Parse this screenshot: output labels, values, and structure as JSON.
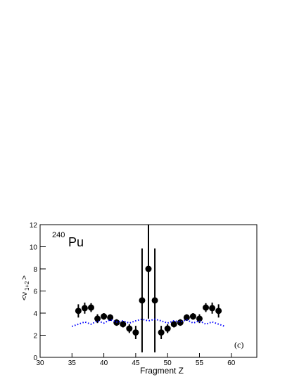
{
  "chart_data": {
    "type": "scatter",
    "x_label": "Fragment Z",
    "y_label_parts": [
      "<ν",
      "1+2",
      ">"
    ],
    "annotations": {
      "mass_number": "240",
      "element": "Pu",
      "panel": "(c)"
    },
    "xlim": [
      30,
      64
    ],
    "ylim": [
      0,
      12
    ],
    "xticks": [
      30,
      35,
      40,
      45,
      50,
      55,
      60
    ],
    "yticks": [
      0,
      2,
      4,
      6,
      8,
      10,
      12
    ],
    "series": [
      {
        "kind": "errorbar",
        "color": "#000000",
        "x": [
          36,
          37,
          38,
          39,
          40,
          41,
          42,
          43,
          44,
          45,
          46,
          47,
          48,
          49,
          50,
          51,
          52,
          53,
          54,
          55,
          56,
          57,
          58
        ],
        "values": [
          4.2,
          4.45,
          4.5,
          3.5,
          3.7,
          3.6,
          3.15,
          3.0,
          2.6,
          2.25,
          5.15,
          8.0,
          5.15,
          2.25,
          2.6,
          3.0,
          3.15,
          3.6,
          3.7,
          3.5,
          4.5,
          4.45,
          4.2
        ],
        "errors": [
          0.6,
          0.5,
          0.4,
          0.4,
          0.3,
          0.3,
          0.3,
          0.3,
          0.4,
          0.6,
          4.7,
          4.5,
          4.7,
          0.6,
          0.4,
          0.3,
          0.3,
          0.3,
          0.3,
          0.4,
          0.4,
          0.5,
          0.6
        ]
      },
      {
        "kind": "line",
        "color": "#0000ff",
        "style": "dotted",
        "x": [
          35,
          36,
          37,
          38,
          39,
          40,
          41,
          42,
          43,
          44,
          45,
          46,
          47,
          48,
          49,
          50,
          51,
          52,
          53,
          54,
          55,
          56,
          57,
          58,
          59
        ],
        "values": [
          2.8,
          3.0,
          3.2,
          3.0,
          3.3,
          3.1,
          3.4,
          3.2,
          3.3,
          3.1,
          3.3,
          3.45,
          3.3,
          3.45,
          3.3,
          3.1,
          3.3,
          3.2,
          3.4,
          3.1,
          3.3,
          3.0,
          3.2,
          3.0,
          2.8
        ]
      }
    ]
  }
}
